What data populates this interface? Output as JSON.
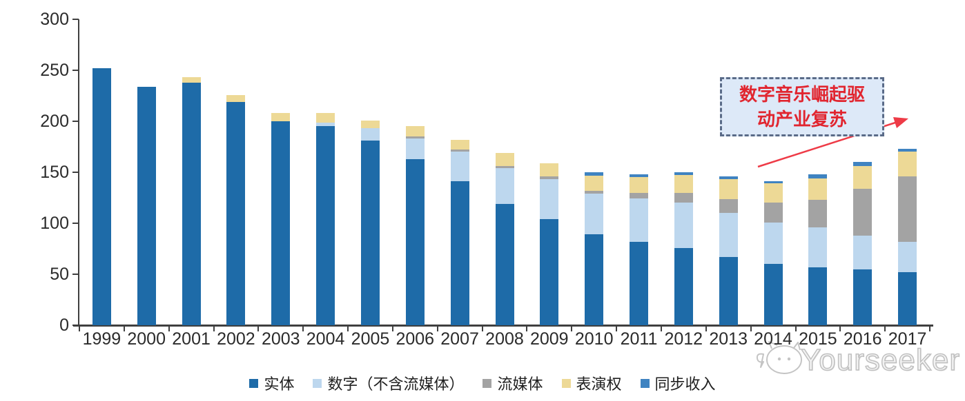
{
  "chart_data": {
    "type": "bar",
    "stacked": true,
    "title": "",
    "xlabel": "",
    "ylabel": "",
    "ylim": [
      0,
      300
    ],
    "yticks": [
      0,
      50,
      100,
      150,
      200,
      250,
      300
    ],
    "grid": false,
    "legend_position": "bottom",
    "categories": [
      "1999",
      "2000",
      "2001",
      "2002",
      "2003",
      "2004",
      "2005",
      "2006",
      "2007",
      "2008",
      "2009",
      "2010",
      "2011",
      "2012",
      "2013",
      "2014",
      "2015",
      "2016",
      "2017"
    ],
    "series": [
      {
        "name": "实体",
        "key": "physical",
        "color": "#1E6BA8",
        "values": [
          252,
          234,
          238,
          219,
          200,
          195,
          181,
          163,
          141,
          119,
          104,
          89,
          82,
          76,
          67,
          60,
          57,
          55,
          52
        ]
      },
      {
        "name": "数字（不含流媒体）",
        "key": "digital-excl-streaming",
        "color": "#BDD7EE",
        "values": [
          0,
          0,
          0,
          0,
          0,
          4,
          12,
          20,
          29,
          35,
          39,
          40,
          42,
          44,
          43,
          41,
          39,
          33,
          30
        ]
      },
      {
        "name": "流媒体",
        "key": "streaming",
        "color": "#A3A3A3",
        "values": [
          0,
          0,
          0,
          0,
          0,
          0,
          0,
          2,
          2,
          2,
          3,
          3,
          6,
          10,
          14,
          19,
          27,
          46,
          64
        ]
      },
      {
        "name": "表演权",
        "key": "performance-rights",
        "color": "#EDD996",
        "values": [
          0,
          0,
          5,
          7,
          8,
          9,
          8,
          10,
          10,
          13,
          13,
          15,
          15,
          17,
          19,
          19,
          21,
          22,
          24
        ]
      },
      {
        "name": "同步收入",
        "key": "sync-revenue",
        "color": "#3F83C1",
        "values": [
          0,
          0,
          0,
          0,
          0,
          0,
          0,
          0,
          0,
          0,
          0,
          3,
          3,
          3,
          3,
          2,
          4,
          4,
          3
        ]
      }
    ]
  },
  "axis": {
    "color": "#3F3F3F",
    "label_color": "#2B2B2B"
  },
  "annotation": {
    "line1": "数字音乐崛起驱",
    "line2": "动产业复苏",
    "text_color": "#E1252F",
    "box_fill": "#DDE9F8",
    "box_border": "#5A6B88",
    "arrow_color": "#EE3B47"
  },
  "watermark": {
    "text": "Yourseeker"
  }
}
